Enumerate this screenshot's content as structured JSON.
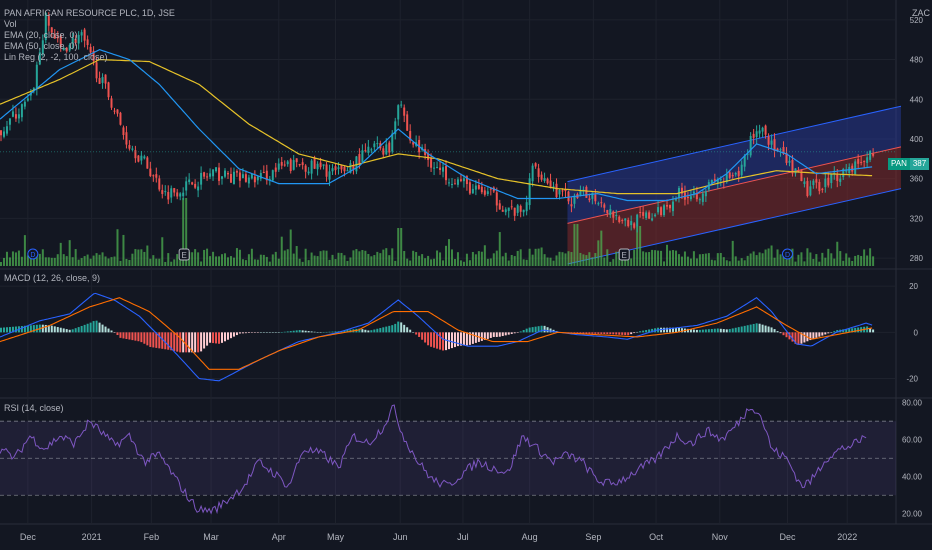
{
  "header": {
    "title": "PAN AFRICAN RESOURCE PLC, 1D, JSE",
    "currency": "ZAC",
    "indicators": [
      "Vol",
      "EMA (20, close, 0)",
      "EMA (50, close, 0)",
      "Lin Reg (2, -2, 100, close)"
    ]
  },
  "macd_label": "MACD (12, 26, close, 9)",
  "rsi_label": "RSI (14, close)",
  "last_price_badge": {
    "symbol": "PAN",
    "value": "387"
  },
  "colors": {
    "up": "#26a69a",
    "down": "#ef5350",
    "vol_up": "#4caf50",
    "vol_down": "#4caf50",
    "ema20": "#2196f3",
    "ema50": "#e6c229",
    "macd": "#2962ff",
    "signal": "#ff6d00",
    "rsi": "#7e57c2",
    "channel_upper": "#2a3ea8",
    "channel_lower": "#8c2b2b"
  },
  "chart_data": [
    {
      "type": "candlestick",
      "title": "PAN AFRICAN RESOURCE PLC, 1D, JSE",
      "x_ticks": [
        "Dec",
        "2021",
        "Feb",
        "Mar",
        "Apr",
        "May",
        "Jun",
        "Jul",
        "Aug",
        "Sep",
        "Oct",
        "Nov",
        "Dec",
        "2022"
      ],
      "y_ticks": [
        280,
        320,
        360,
        400,
        440,
        480,
        520
      ],
      "ylim": [
        270,
        540
      ],
      "ylabel": "ZAC",
      "close_keypoints": [
        [
          0,
          410
        ],
        [
          20,
          430
        ],
        [
          30,
          440
        ],
        [
          45,
          520
        ],
        [
          60,
          490
        ],
        [
          80,
          505
        ],
        [
          95,
          470
        ],
        [
          110,
          440
        ],
        [
          125,
          400
        ],
        [
          145,
          375
        ],
        [
          165,
          345
        ],
        [
          180,
          350
        ],
        [
          200,
          360
        ],
        [
          215,
          365
        ],
        [
          240,
          360
        ],
        [
          260,
          360
        ],
        [
          280,
          370
        ],
        [
          300,
          375
        ],
        [
          340,
          365
        ],
        [
          360,
          380
        ],
        [
          375,
          392
        ],
        [
          390,
          390
        ],
        [
          400,
          445
        ],
        [
          410,
          400
        ],
        [
          425,
          385
        ],
        [
          440,
          368
        ],
        [
          460,
          358
        ],
        [
          475,
          348
        ],
        [
          490,
          345
        ],
        [
          510,
          328
        ],
        [
          525,
          325
        ],
        [
          535,
          375
        ],
        [
          545,
          362
        ],
        [
          560,
          345
        ],
        [
          575,
          337
        ],
        [
          590,
          345
        ],
        [
          600,
          340
        ],
        [
          615,
          325
        ],
        [
          630,
          315
        ],
        [
          645,
          320
        ],
        [
          660,
          325
        ],
        [
          680,
          345
        ],
        [
          700,
          345
        ],
        [
          720,
          358
        ],
        [
          740,
          360
        ],
        [
          755,
          405
        ],
        [
          765,
          412
        ],
        [
          775,
          392
        ],
        [
          790,
          375
        ],
        [
          810,
          348
        ],
        [
          830,
          358
        ],
        [
          850,
          370
        ],
        [
          870,
          380
        ],
        [
          877,
          387
        ]
      ],
      "last_price": 387,
      "ema20_keypoints": [
        [
          0,
          420
        ],
        [
          60,
          470
        ],
        [
          100,
          490
        ],
        [
          130,
          480
        ],
        [
          160,
          455
        ],
        [
          200,
          410
        ],
        [
          240,
          370
        ],
        [
          280,
          355
        ],
        [
          330,
          355
        ],
        [
          360,
          372
        ],
        [
          400,
          410
        ],
        [
          430,
          385
        ],
        [
          470,
          360
        ],
        [
          520,
          340
        ],
        [
          560,
          340
        ],
        [
          600,
          345
        ],
        [
          630,
          338
        ],
        [
          670,
          338
        ],
        [
          700,
          345
        ],
        [
          730,
          365
        ],
        [
          760,
          395
        ],
        [
          790,
          385
        ],
        [
          820,
          365
        ],
        [
          877,
          372
        ]
      ],
      "ema50_keypoints": [
        [
          0,
          435
        ],
        [
          60,
          460
        ],
        [
          100,
          480
        ],
        [
          150,
          478
        ],
        [
          200,
          455
        ],
        [
          250,
          415
        ],
        [
          300,
          385
        ],
        [
          350,
          372
        ],
        [
          400,
          385
        ],
        [
          440,
          380
        ],
        [
          500,
          360
        ],
        [
          560,
          350
        ],
        [
          620,
          345
        ],
        [
          680,
          345
        ],
        [
          740,
          360
        ],
        [
          780,
          368
        ],
        [
          830,
          365
        ],
        [
          877,
          363
        ]
      ],
      "linreg": {
        "start_index": 570,
        "end_index": 905,
        "center_start": 315,
        "center_end": 392,
        "upper_start": 357,
        "upper_end": 433,
        "lower_start": 274,
        "lower_end": 350
      },
      "volume_events_E": [
        185,
        627
      ],
      "volume_events_D": [
        33,
        791
      ]
    },
    {
      "type": "line",
      "name": "MACD",
      "y_ticks": [
        -20,
        0,
        20
      ],
      "ylim": [
        -28,
        27
      ],
      "macd_keypoints": [
        [
          0,
          -2
        ],
        [
          40,
          5
        ],
        [
          70,
          8
        ],
        [
          95,
          17
        ],
        [
          115,
          14
        ],
        [
          140,
          7
        ],
        [
          170,
          -6
        ],
        [
          200,
          -20
        ],
        [
          220,
          -21
        ],
        [
          260,
          -12
        ],
        [
          300,
          -4
        ],
        [
          340,
          0
        ],
        [
          370,
          4
        ],
        [
          400,
          14
        ],
        [
          420,
          7
        ],
        [
          445,
          -3
        ],
        [
          470,
          -6
        ],
        [
          500,
          -6
        ],
        [
          520,
          -4
        ],
        [
          545,
          1
        ],
        [
          580,
          -1
        ],
        [
          610,
          -2
        ],
        [
          630,
          -3
        ],
        [
          660,
          1
        ],
        [
          700,
          3
        ],
        [
          730,
          7
        ],
        [
          760,
          15
        ],
        [
          775,
          9
        ],
        [
          800,
          -5
        ],
        [
          815,
          -6
        ],
        [
          840,
          0
        ],
        [
          870,
          4
        ],
        [
          877,
          3
        ]
      ],
      "signal_keypoints": [
        [
          0,
          -4
        ],
        [
          50,
          3
        ],
        [
          90,
          11
        ],
        [
          120,
          15
        ],
        [
          150,
          9
        ],
        [
          180,
          -2
        ],
        [
          210,
          -16
        ],
        [
          240,
          -16
        ],
        [
          280,
          -8
        ],
        [
          320,
          -2
        ],
        [
          360,
          1
        ],
        [
          395,
          9
        ],
        [
          430,
          9
        ],
        [
          460,
          1
        ],
        [
          495,
          -4
        ],
        [
          530,
          -4
        ],
        [
          560,
          0
        ],
        [
          600,
          -1
        ],
        [
          640,
          -2
        ],
        [
          680,
          0
        ],
        [
          720,
          4
        ],
        [
          760,
          11
        ],
        [
          790,
          3
        ],
        [
          815,
          -3
        ],
        [
          840,
          -1
        ],
        [
          877,
          2
        ]
      ]
    },
    {
      "type": "line",
      "name": "RSI",
      "y_ticks": [
        20,
        40,
        60,
        80
      ],
      "ylim": [
        15,
        82
      ],
      "bands": [
        30,
        50,
        70
      ],
      "rsi_keypoints": [
        [
          0,
          55
        ],
        [
          15,
          50
        ],
        [
          30,
          62
        ],
        [
          45,
          55
        ],
        [
          60,
          62
        ],
        [
          75,
          58
        ],
        [
          90,
          70
        ],
        [
          100,
          65
        ],
        [
          115,
          57
        ],
        [
          130,
          62
        ],
        [
          145,
          48
        ],
        [
          160,
          52
        ],
        [
          175,
          40
        ],
        [
          190,
          28
        ],
        [
          200,
          22
        ],
        [
          215,
          22
        ],
        [
          230,
          28
        ],
        [
          245,
          35
        ],
        [
          260,
          48
        ],
        [
          275,
          42
        ],
        [
          290,
          35
        ],
        [
          305,
          55
        ],
        [
          325,
          52
        ],
        [
          340,
          45
        ],
        [
          355,
          62
        ],
        [
          370,
          58
        ],
        [
          385,
          67
        ],
        [
          395,
          78
        ],
        [
          405,
          62
        ],
        [
          420,
          48
        ],
        [
          435,
          38
        ],
        [
          450,
          35
        ],
        [
          465,
          42
        ],
        [
          480,
          48
        ],
        [
          495,
          45
        ],
        [
          510,
          42
        ],
        [
          525,
          62
        ],
        [
          540,
          55
        ],
        [
          555,
          48
        ],
        [
          570,
          52
        ],
        [
          585,
          48
        ],
        [
          600,
          38
        ],
        [
          615,
          36
        ],
        [
          630,
          40
        ],
        [
          645,
          45
        ],
        [
          660,
          50
        ],
        [
          680,
          62
        ],
        [
          695,
          58
        ],
        [
          710,
          65
        ],
        [
          725,
          60
        ],
        [
          740,
          68
        ],
        [
          755,
          79
        ],
        [
          765,
          72
        ],
        [
          775,
          55
        ],
        [
          790,
          50
        ],
        [
          805,
          35
        ],
        [
          815,
          38
        ],
        [
          830,
          50
        ],
        [
          845,
          55
        ],
        [
          860,
          58
        ],
        [
          870,
          62
        ]
      ]
    }
  ]
}
